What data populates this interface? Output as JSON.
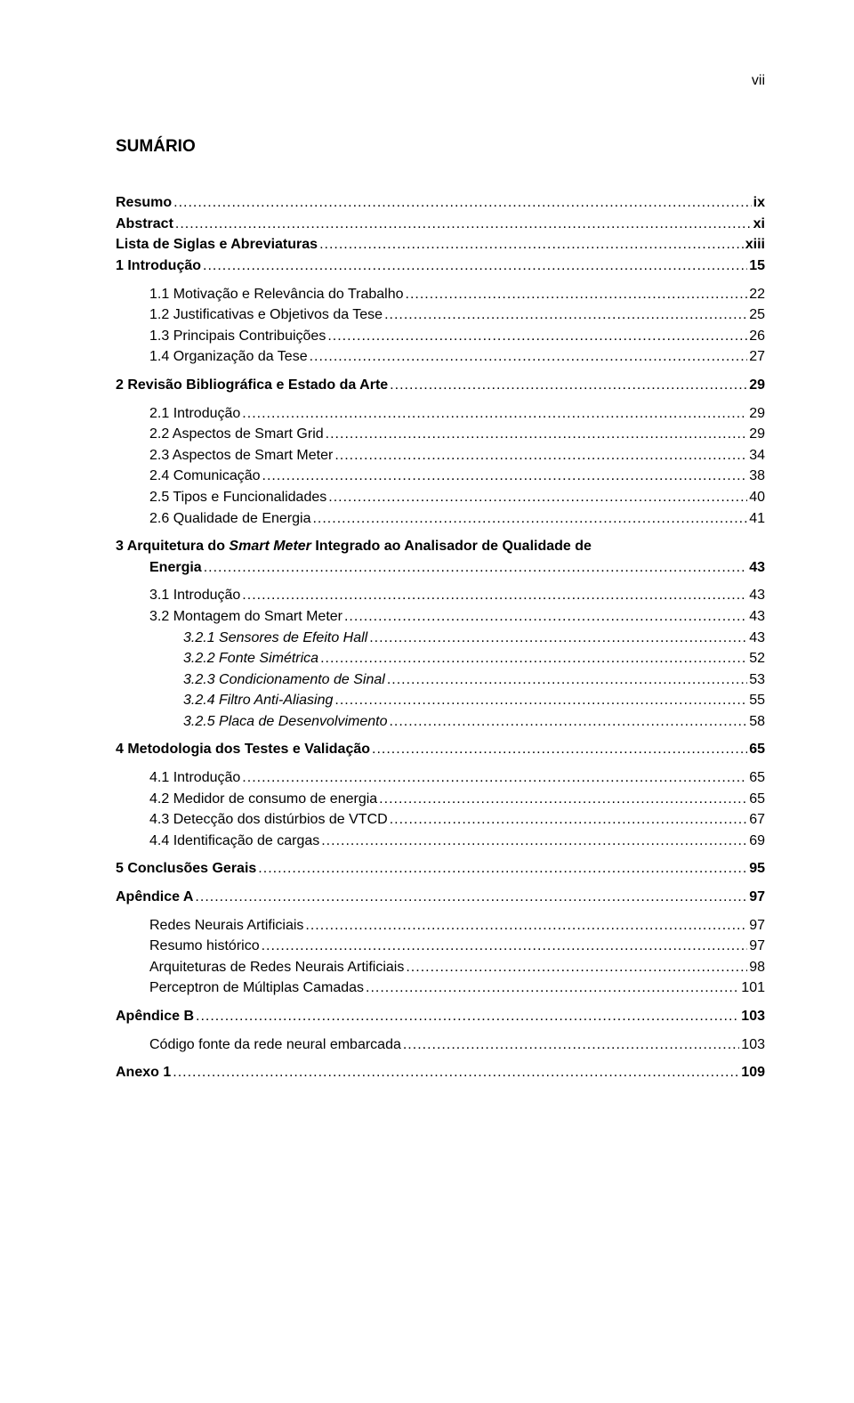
{
  "page_number": "vii",
  "title": "SUMÁRIO",
  "entries": [
    {
      "label": "Resumo",
      "page": "ix",
      "bold": true,
      "italic": false,
      "level": 0,
      "gap": ""
    },
    {
      "label": "Abstract",
      "page": "xi",
      "bold": true,
      "italic": false,
      "level": 0,
      "gap": ""
    },
    {
      "label": "Lista de Siglas e Abreviaturas",
      "page": "xiii",
      "bold": true,
      "italic": false,
      "level": 0,
      "gap": ""
    },
    {
      "label": "1    Introdução",
      "page": "15",
      "bold": true,
      "italic": false,
      "level": 0,
      "gap": ""
    },
    {
      "label": "1.1  Motivação e Relevância do Trabalho",
      "page": "22",
      "bold": false,
      "italic": false,
      "level": 1,
      "gap": "gap-small"
    },
    {
      "label": "1.2  Justificativas e Objetivos da Tese",
      "page": "25",
      "bold": false,
      "italic": false,
      "level": 1,
      "gap": ""
    },
    {
      "label": "1.3  Principais Contribuições",
      "page": "26",
      "bold": false,
      "italic": false,
      "level": 1,
      "gap": ""
    },
    {
      "label": "1.4  Organização da Tese",
      "page": "27",
      "bold": false,
      "italic": false,
      "level": 1,
      "gap": ""
    },
    {
      "label": "2    Revisão Bibliográfica e Estado da Arte",
      "page": "29",
      "bold": true,
      "italic": false,
      "level": 0,
      "gap": "gap-small"
    },
    {
      "label": "2.1  Introdução",
      "page": "29",
      "bold": false,
      "italic": false,
      "level": 1,
      "gap": "gap-small"
    },
    {
      "label": "2.2  Aspectos de Smart Grid",
      "page": "29",
      "bold": false,
      "italic": false,
      "level": 1,
      "gap": ""
    },
    {
      "label": "2.3  Aspectos de Smart Meter",
      "page": "34",
      "bold": false,
      "italic": false,
      "level": 1,
      "gap": ""
    },
    {
      "label": "2.4  Comunicação",
      "page": "38",
      "bold": false,
      "italic": false,
      "level": 1,
      "gap": ""
    },
    {
      "label": "2.5  Tipos e Funcionalidades",
      "page": "40",
      "bold": false,
      "italic": false,
      "level": 1,
      "gap": ""
    },
    {
      "label": "2.6  Qualidade de Energia",
      "page": "41",
      "bold": false,
      "italic": false,
      "level": 1,
      "gap": ""
    },
    {
      "label": "3    Arquitetura do Smart Meter Integrado ao Analisador de Qualidade de",
      "label2": "Energia",
      "page": "43",
      "bold": true,
      "italic": false,
      "level": 0,
      "gap": "gap-small",
      "twoLine": true
    },
    {
      "label": "3.1  Introdução",
      "page": "43",
      "bold": false,
      "italic": false,
      "level": 1,
      "gap": "gap-small"
    },
    {
      "label": "3.2  Montagem do Smart Meter",
      "page": "43",
      "bold": false,
      "italic": false,
      "level": 1,
      "gap": ""
    },
    {
      "label": "3.2.1  Sensores de Efeito Hall",
      "page": "43",
      "bold": false,
      "italic": true,
      "level": 2,
      "gap": ""
    },
    {
      "label": "3.2.2  Fonte Simétrica",
      "page": "52",
      "bold": false,
      "italic": true,
      "level": 2,
      "gap": ""
    },
    {
      "label": "3.2.3  Condicionamento de Sinal",
      "page": "53",
      "bold": false,
      "italic": true,
      "level": 2,
      "gap": ""
    },
    {
      "label": "3.2.4  Filtro Anti-Aliasing",
      "page": "55",
      "bold": false,
      "italic": true,
      "level": 2,
      "gap": ""
    },
    {
      "label": "3.2.5  Placa de Desenvolvimento",
      "page": "58",
      "bold": false,
      "italic": true,
      "level": 2,
      "gap": ""
    },
    {
      "label": "4    Metodologia dos Testes e Validação",
      "page": "65",
      "bold": true,
      "italic": false,
      "level": 0,
      "gap": "gap-small"
    },
    {
      "label": "4.1  Introdução",
      "page": "65",
      "bold": false,
      "italic": false,
      "level": 1,
      "gap": "gap-small"
    },
    {
      "label": "4.2  Medidor de consumo de energia",
      "page": "65",
      "bold": false,
      "italic": false,
      "level": 1,
      "gap": ""
    },
    {
      "label": "4.3  Detecção dos distúrbios de VTCD",
      "page": "67",
      "bold": false,
      "italic": false,
      "level": 1,
      "gap": ""
    },
    {
      "label": "4.4  Identificação de cargas",
      "page": "69",
      "bold": false,
      "italic": false,
      "level": 1,
      "gap": ""
    },
    {
      "label": "5    Conclusões Gerais",
      "page": "95",
      "bold": true,
      "italic": false,
      "level": 0,
      "gap": "gap-small"
    },
    {
      "label": "Apêndice A",
      "page": "97",
      "bold": true,
      "italic": false,
      "level": 0,
      "gap": "gap-small"
    },
    {
      "label": "Redes Neurais Artificiais",
      "page": "97",
      "bold": false,
      "italic": false,
      "level": 1,
      "gap": "gap-small"
    },
    {
      "label": "Resumo histórico",
      "page": "97",
      "bold": false,
      "italic": false,
      "level": 1,
      "gap": ""
    },
    {
      "label": "Arquiteturas de Redes Neurais Artificiais",
      "page": "98",
      "bold": false,
      "italic": false,
      "level": 1,
      "gap": ""
    },
    {
      "label": "Perceptron de Múltiplas Camadas",
      "page": "101",
      "bold": false,
      "italic": false,
      "level": 1,
      "gap": ""
    },
    {
      "label": "Apêndice B",
      "page": "103",
      "bold": true,
      "italic": false,
      "level": 0,
      "gap": "gap-small"
    },
    {
      "label": "Código fonte da rede neural embarcada",
      "page": "103",
      "bold": false,
      "italic": false,
      "level": 1,
      "gap": "gap-small"
    },
    {
      "label": "Anexo 1",
      "page": "109",
      "bold": true,
      "italic": false,
      "level": 0,
      "gap": "gap-small"
    }
  ]
}
